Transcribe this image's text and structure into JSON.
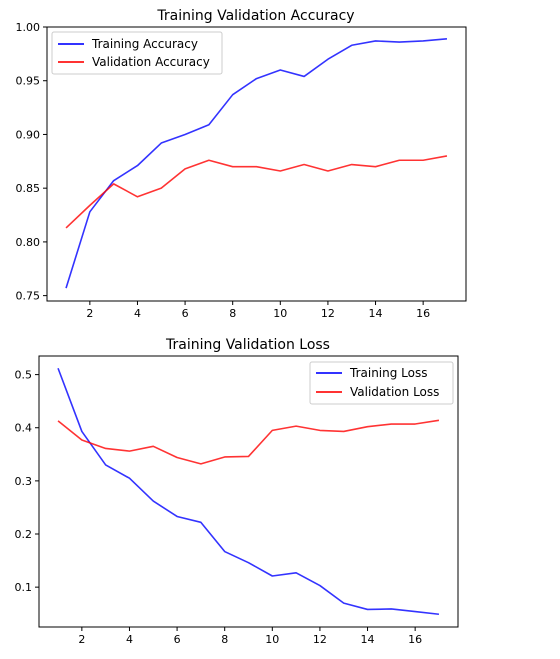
{
  "chart_data": [
    {
      "type": "line",
      "title": "Training Validation Accuracy",
      "xlabel": "",
      "ylabel": "",
      "x": [
        1,
        2,
        3,
        4,
        5,
        6,
        7,
        8,
        9,
        10,
        11,
        12,
        13,
        14,
        15,
        16,
        17
      ],
      "xlim": [
        0.2,
        17.8
      ],
      "ylim": [
        0.745,
        1.0
      ],
      "xticks": [
        2,
        4,
        6,
        8,
        10,
        12,
        14,
        16
      ],
      "xtick_labels": [
        "2",
        "4",
        "6",
        "8",
        "10",
        "12",
        "14",
        "16"
      ],
      "yticks": [
        0.75,
        0.8,
        0.85,
        0.9,
        0.95,
        1.0
      ],
      "ytick_labels": [
        "0.75",
        "0.80",
        "0.85",
        "0.90",
        "0.95",
        "1.00"
      ],
      "grid": false,
      "legend_position": "top-left",
      "series": [
        {
          "name": "Training Accuracy",
          "color": "#0000ff",
          "values": [
            0.757,
            0.828,
            0.857,
            0.871,
            0.892,
            0.9,
            0.909,
            0.937,
            0.952,
            0.96,
            0.954,
            0.97,
            0.983,
            0.987,
            0.986,
            0.987,
            0.989
          ]
        },
        {
          "name": "Validation Accuracy",
          "color": "#ff0000",
          "values": [
            0.813,
            0.834,
            0.854,
            0.842,
            0.85,
            0.868,
            0.876,
            0.87,
            0.87,
            0.866,
            0.872,
            0.866,
            0.872,
            0.87,
            0.876,
            0.876,
            0.88
          ]
        }
      ]
    },
    {
      "type": "line",
      "title": "Training Validation Loss",
      "xlabel": "",
      "ylabel": "",
      "x": [
        1,
        2,
        3,
        4,
        5,
        6,
        7,
        8,
        9,
        10,
        11,
        12,
        13,
        14,
        15,
        16,
        17
      ],
      "xlim": [
        0.2,
        17.8
      ],
      "ylim": [
        0.025,
        0.535
      ],
      "xticks": [
        2,
        4,
        6,
        8,
        10,
        12,
        14,
        16
      ],
      "xtick_labels": [
        "2",
        "4",
        "6",
        "8",
        "10",
        "12",
        "14",
        "16"
      ],
      "yticks": [
        0.1,
        0.2,
        0.3,
        0.4,
        0.5
      ],
      "ytick_labels": [
        "0.1",
        "0.2",
        "0.3",
        "0.4",
        "0.5"
      ],
      "grid": false,
      "legend_position": "top-right",
      "series": [
        {
          "name": "Training Loss",
          "color": "#0000ff",
          "values": [
            0.512,
            0.393,
            0.33,
            0.305,
            0.262,
            0.233,
            0.222,
            0.167,
            0.146,
            0.121,
            0.127,
            0.103,
            0.07,
            0.058,
            0.059,
            0.054,
            0.049
          ]
        },
        {
          "name": "Validation Loss",
          "color": "#ff0000",
          "values": [
            0.413,
            0.377,
            0.361,
            0.356,
            0.365,
            0.344,
            0.332,
            0.345,
            0.346,
            0.395,
            0.403,
            0.395,
            0.393,
            0.402,
            0.407,
            0.407,
            0.414
          ]
        }
      ]
    }
  ]
}
